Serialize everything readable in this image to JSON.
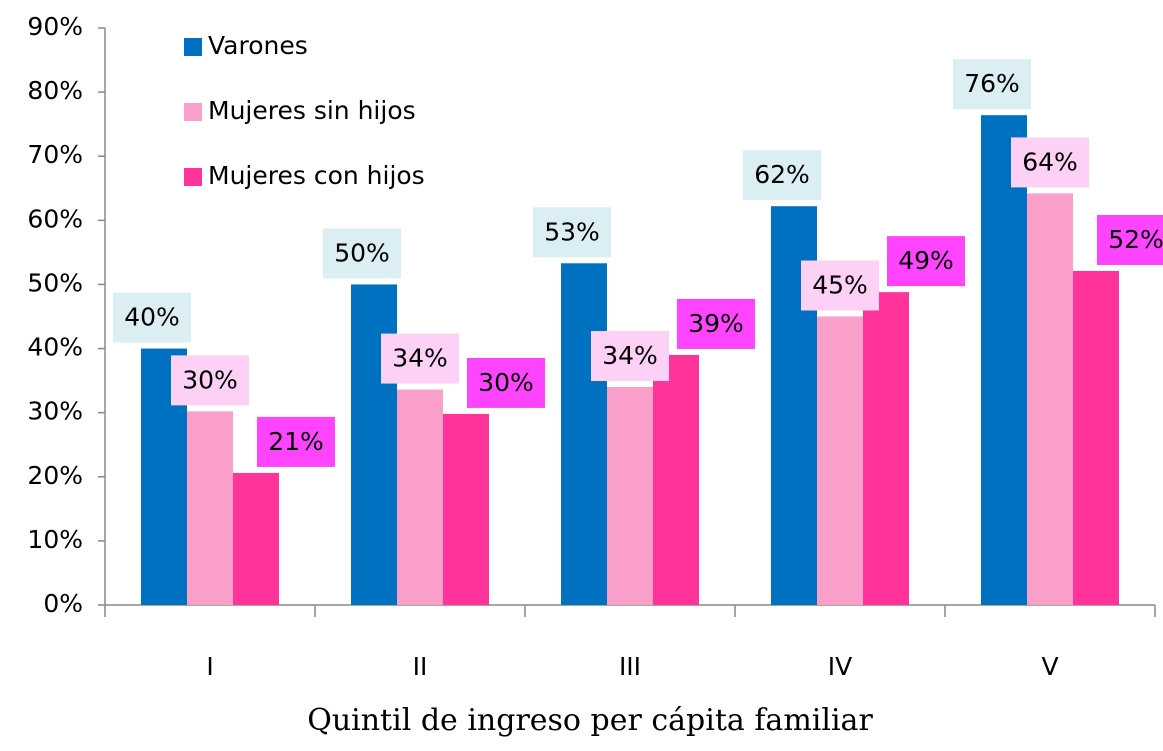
{
  "chart_data": {
    "type": "bar",
    "x_label": "Quintil de ingreso per cápita familiar",
    "categories": [
      "I",
      "II",
      "III",
      "IV",
      "V"
    ],
    "series": [
      {
        "name": "Varones",
        "color": "#0070c0",
        "label_color": "#daeef3",
        "values": [
          40,
          50,
          53.3,
          62.2,
          76.4
        ],
        "value_labels": [
          "40%",
          "50%",
          "53%",
          "62%",
          "76%"
        ]
      },
      {
        "name": "Mujeres sin hijos",
        "color": "#f99fc9",
        "label_color": "#fdd0f5",
        "values": [
          30.2,
          33.6,
          34,
          45,
          64.2
        ],
        "value_labels": [
          "30%",
          "34%",
          "34%",
          "45%",
          "64%"
        ]
      },
      {
        "name": "Mujeres con hijos",
        "color": "#ff3399",
        "label_color": "#ff44ff",
        "values": [
          20.6,
          29.8,
          39,
          48.8,
          52.1
        ],
        "value_labels": [
          "21%",
          "30%",
          "39%",
          "49%",
          "52%"
        ]
      }
    ],
    "ylim": [
      0,
      90
    ],
    "yticks": [
      {
        "value": 0,
        "label": "0%"
      },
      {
        "value": 10,
        "label": "10%"
      },
      {
        "value": 20,
        "label": "20%"
      },
      {
        "value": 30,
        "label": "30%"
      },
      {
        "value": 40,
        "label": "40%"
      },
      {
        "value": 50,
        "label": "50%"
      },
      {
        "value": 60,
        "label": "60%"
      },
      {
        "value": 70,
        "label": "70%"
      },
      {
        "value": 80,
        "label": "80%"
      },
      {
        "value": 90,
        "label": "90%"
      }
    ],
    "grid": false,
    "legend": "top-left"
  }
}
